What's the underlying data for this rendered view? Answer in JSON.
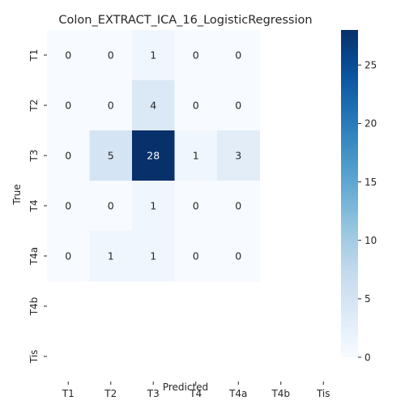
{
  "chart_data": {
    "type": "heatmap",
    "title": "Colon_EXTRACT_ICA_16_LogisticRegression",
    "xlabel": "Predicted",
    "ylabel": "True",
    "x_categories": [
      "T1",
      "T2",
      "T3",
      "T4",
      "T4a",
      "T4b",
      "Tis"
    ],
    "y_categories": [
      "T1",
      "T2",
      "T3",
      "T4",
      "T4a",
      "T4b",
      "Tis"
    ],
    "values": [
      [
        0,
        0,
        1,
        0,
        0,
        null,
        null
      ],
      [
        0,
        0,
        4,
        0,
        0,
        null,
        null
      ],
      [
        0,
        5,
        28,
        1,
        3,
        null,
        null
      ],
      [
        0,
        0,
        1,
        0,
        0,
        null,
        null
      ],
      [
        0,
        1,
        1,
        0,
        0,
        null,
        null
      ],
      [
        null,
        null,
        null,
        null,
        null,
        null,
        null
      ],
      [
        null,
        null,
        null,
        null,
        null,
        null,
        null
      ]
    ],
    "colorbar": {
      "colormap": "Blues",
      "min": 0,
      "max": 28,
      "ticks": [
        0,
        5,
        10,
        15,
        20,
        25
      ]
    }
  }
}
